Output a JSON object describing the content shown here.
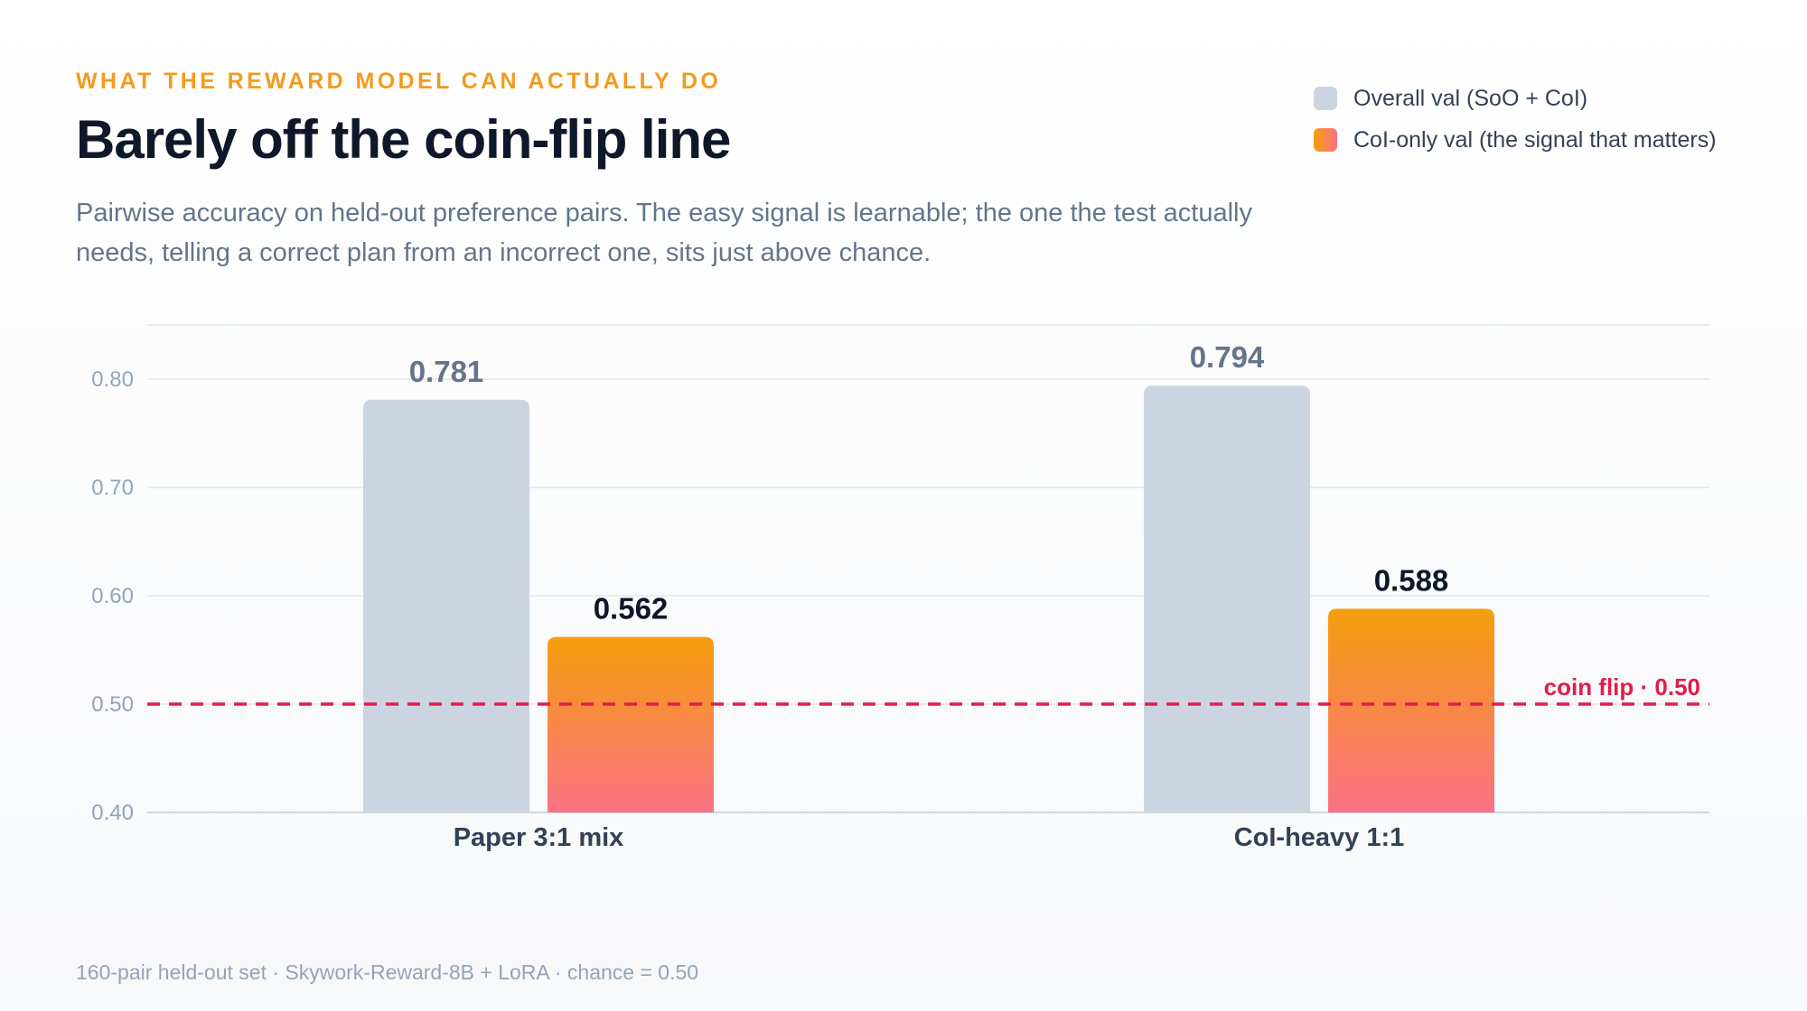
{
  "header": {
    "eyebrow": "WHAT THE REWARD MODEL CAN ACTUALLY DO",
    "title": "Barely off the coin-flip line",
    "subtitle": "Pairwise accuracy on held-out preference pairs. The easy signal is learnable; the one the test actually needs, telling a correct plan from an incorrect one, sits just above chance."
  },
  "legend": {
    "items": [
      {
        "label": "Overall val (SoO + CoI)",
        "color": "#cbd5e1"
      },
      {
        "label": "CoI-only val (the signal that matters)",
        "color": "#f59e0b"
      }
    ]
  },
  "footnote": "160-pair held-out set · Skywork-Reward-8B + LoRA · chance = 0.50",
  "colors": {
    "overall": "#cbd5e1",
    "coi_top": "#f59e0b",
    "coi_bottom": "#fb7185",
    "reference": "#e11d48",
    "overall_label": "#64748b",
    "coi_label": "#0f172a"
  },
  "chart_data": {
    "type": "bar",
    "categories": [
      "Paper 3:1 mix",
      "CoI-heavy 1:1"
    ],
    "series": [
      {
        "name": "Overall val (SoO + CoI)",
        "values": [
          0.781,
          0.794
        ],
        "labels": [
          "0.781",
          "0.794"
        ]
      },
      {
        "name": "CoI-only val (the signal that matters)",
        "values": [
          0.562,
          0.588
        ],
        "labels": [
          "0.562",
          "0.588"
        ]
      }
    ],
    "ylim": [
      0.4,
      0.85
    ],
    "yticks": [
      0.4,
      0.5,
      0.6,
      0.7,
      0.8
    ],
    "ytick_labels": [
      "0.40",
      "0.50",
      "0.60",
      "0.70",
      "0.80"
    ],
    "reference_line": {
      "value": 0.5,
      "label": "coin flip · 0.50"
    },
    "grid": true,
    "legend_position": "top-right",
    "xlabel": "",
    "ylabel": ""
  }
}
